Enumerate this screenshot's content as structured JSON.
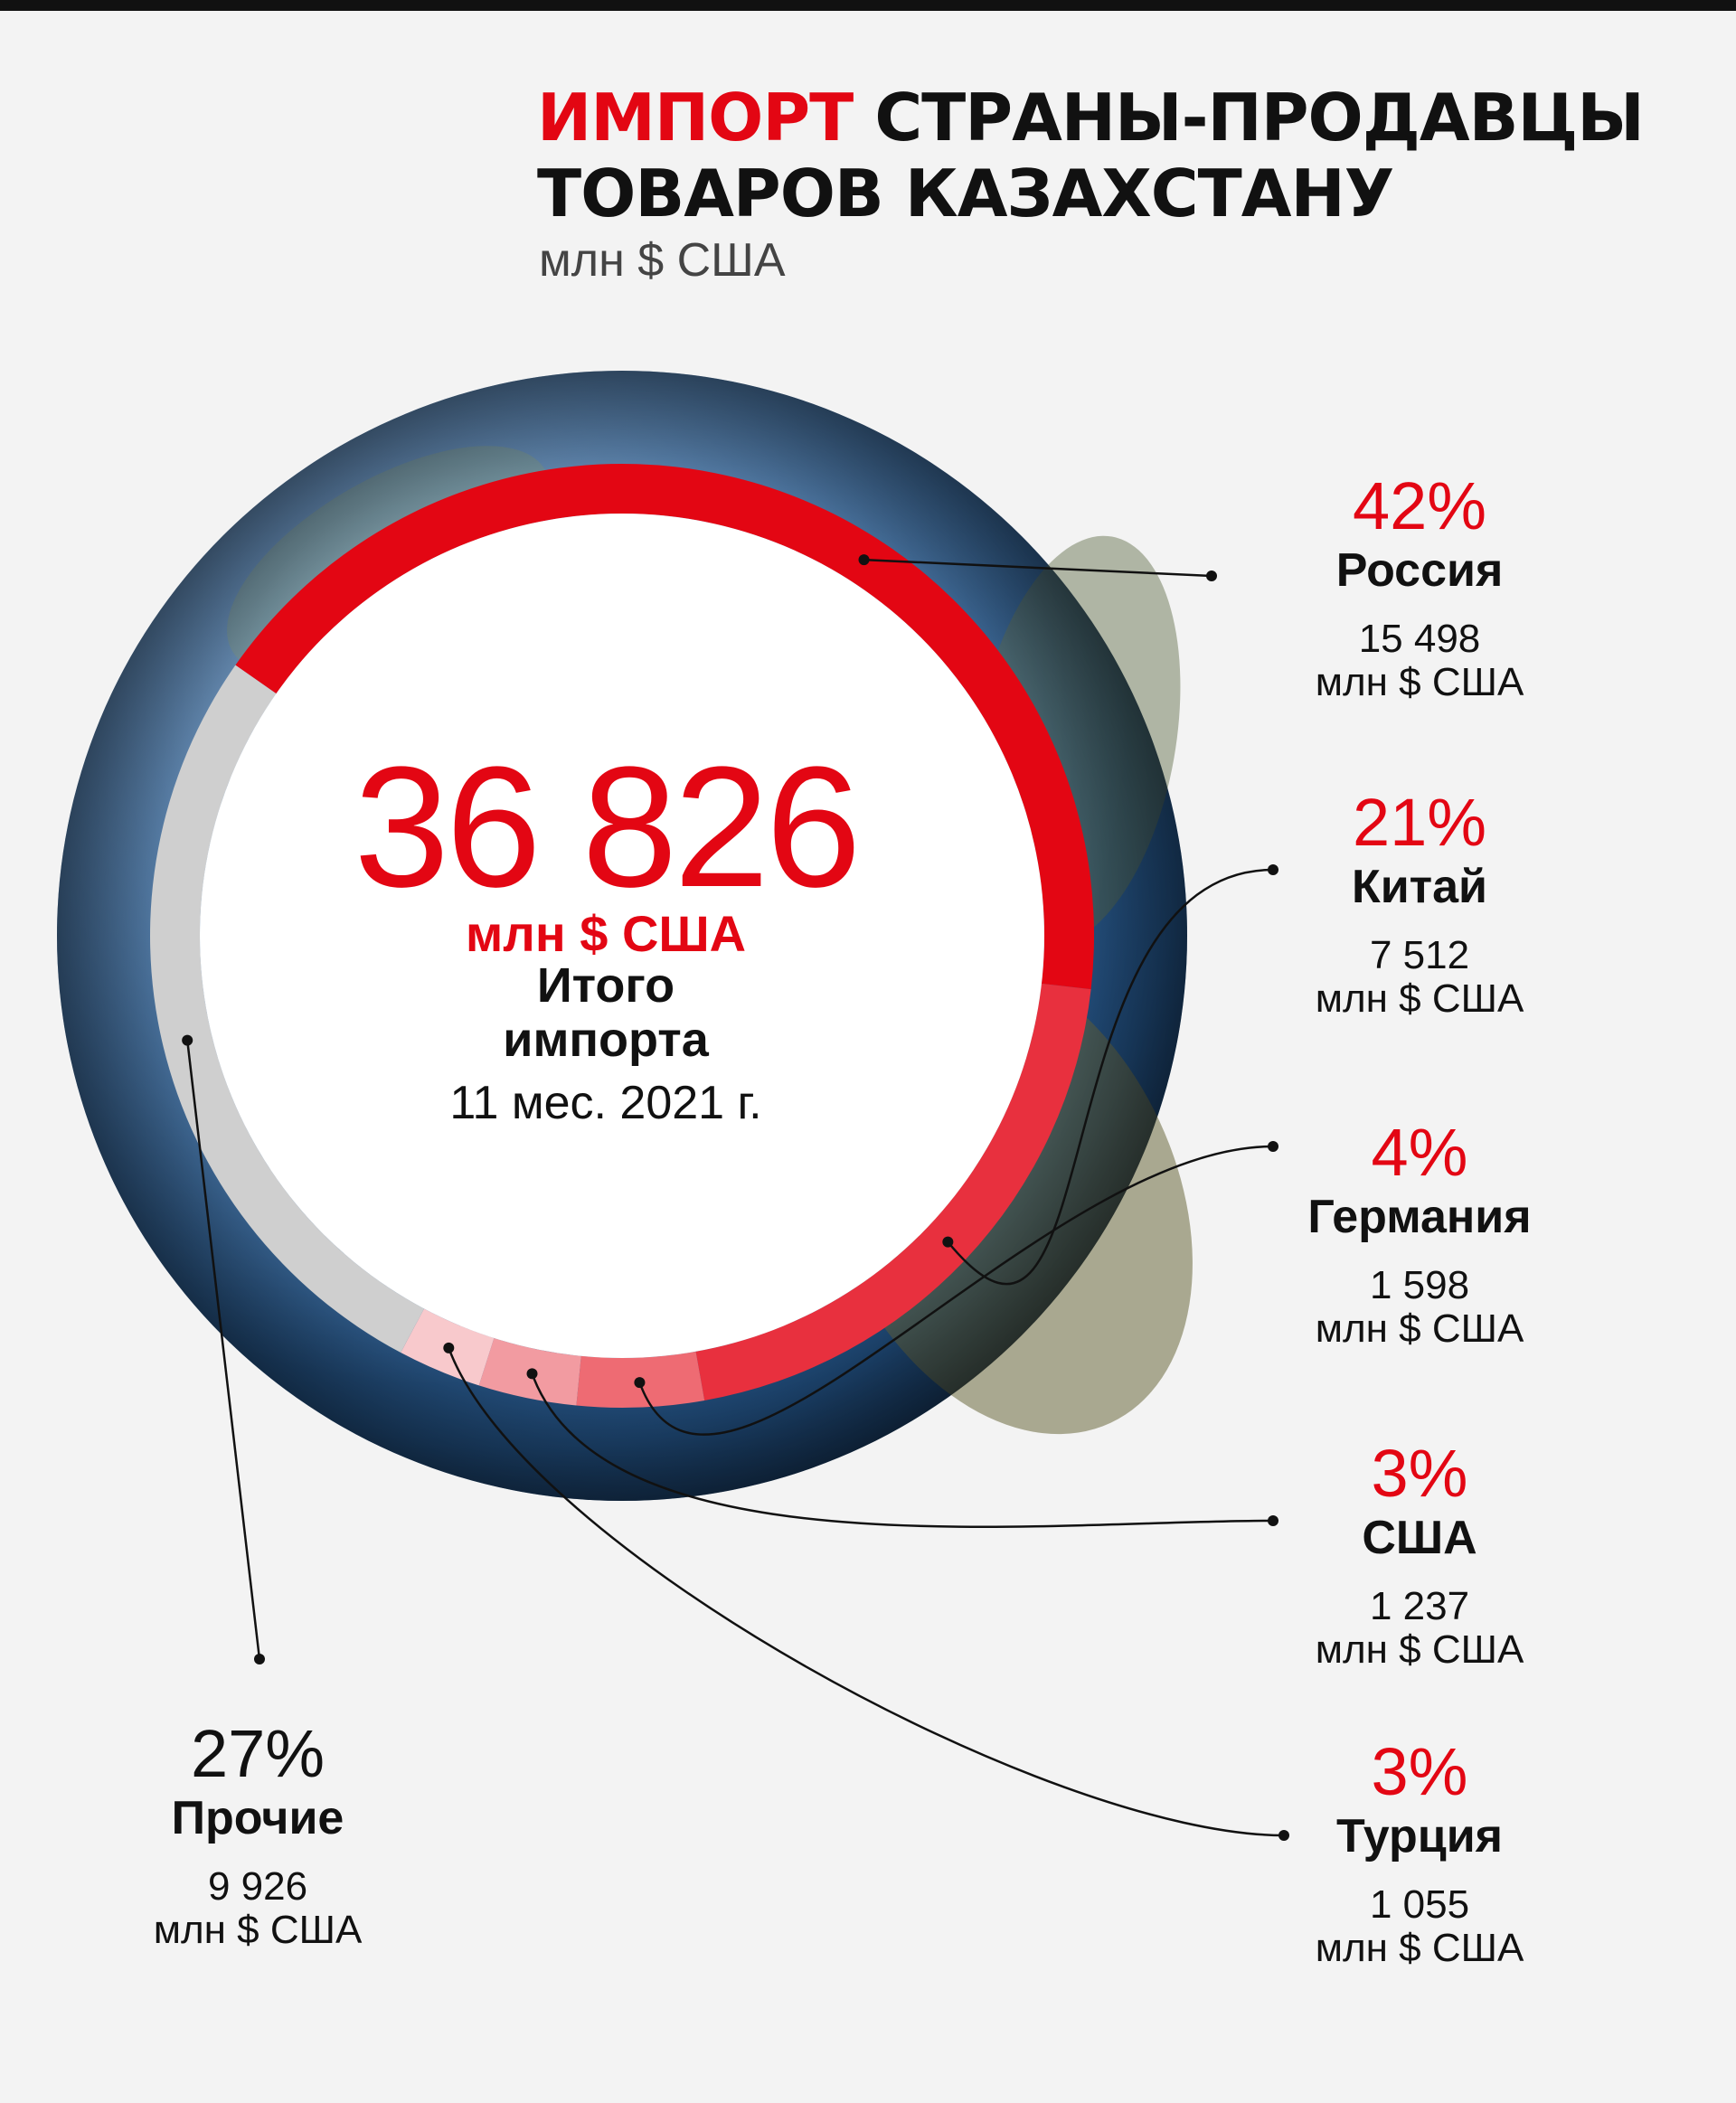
{
  "header": {
    "title_accent": "ИМПОРТ",
    "title_line1_rest": "СТРАНЫ-ПРОДАВЦЫ",
    "title_line2": "ТОВАРОВ КАЗАХСТАНУ",
    "subtitle": "млн $ США"
  },
  "center": {
    "total": "36 826",
    "unit": "млн $ США",
    "label_line1": "Итого",
    "label_line2": "импорта",
    "period": "11 мес. 2021 г."
  },
  "chart_data": {
    "type": "pie",
    "style": "donut",
    "unit": "млн $ США",
    "total": 36826,
    "slices": [
      {
        "name": "Россия",
        "percent_label": "42%",
        "value_label": "15 498",
        "value": 15498,
        "color": "#e30613"
      },
      {
        "name": "Китай",
        "percent_label": "21%",
        "value_label": "7 512",
        "value": 7512,
        "color": "#e8303e"
      },
      {
        "name": "Германия",
        "percent_label": "4%",
        "value_label": "1 598",
        "value": 1598,
        "color": "#ee6b73"
      },
      {
        "name": "США",
        "percent_label": "3%",
        "value_label": "1 237",
        "value": 1237,
        "color": "#f29ba1"
      },
      {
        "name": "Турция",
        "percent_label": "3%",
        "value_label": "1 055",
        "value": 1055,
        "color": "#f8c9cc"
      },
      {
        "name": "Прочие",
        "percent_label": "27%",
        "value_label": "9 926",
        "value": 9926,
        "color": "#cfcfcf"
      }
    ]
  },
  "colors": {
    "accent": "#e30613",
    "text": "#111111",
    "background": "#f3f3f3"
  }
}
